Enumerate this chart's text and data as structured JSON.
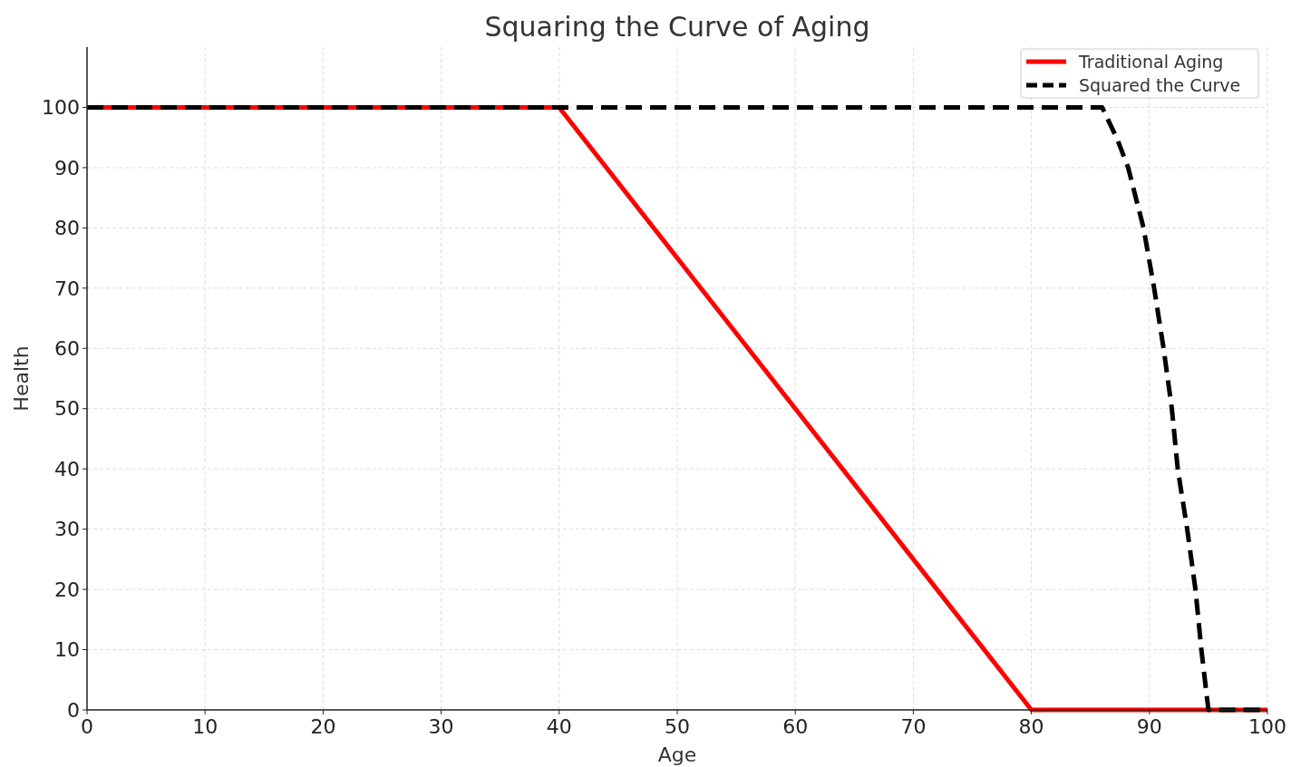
{
  "chart_data": {
    "type": "line",
    "title": "Squaring the Curve of Aging",
    "xlabel": "Age",
    "ylabel": "Health",
    "xlim": [
      0,
      100
    ],
    "ylim": [
      0,
      110
    ],
    "xticks": [
      0,
      10,
      20,
      30,
      40,
      50,
      60,
      70,
      80,
      90,
      100
    ],
    "yticks": [
      0,
      10,
      20,
      30,
      40,
      50,
      60,
      70,
      80,
      90,
      100
    ],
    "grid": true,
    "legend": "top right",
    "series": [
      {
        "name": "Traditional Aging",
        "color": "#ff0000",
        "line_style": "solid",
        "x": [
          0,
          40,
          80,
          100
        ],
        "values": [
          100,
          100,
          0,
          0
        ]
      },
      {
        "name": "Squared the Curve",
        "color": "#000000",
        "line_style": "dashed",
        "x": [
          0,
          86,
          87.3,
          88.2,
          89.5,
          90.4,
          91.2,
          91.9,
          92.4,
          93.2,
          93.9,
          94.4,
          95,
          100
        ],
        "values": [
          100,
          100,
          94.6,
          90,
          80,
          70,
          60,
          50,
          40,
          30,
          20,
          10,
          0,
          0
        ]
      }
    ]
  }
}
